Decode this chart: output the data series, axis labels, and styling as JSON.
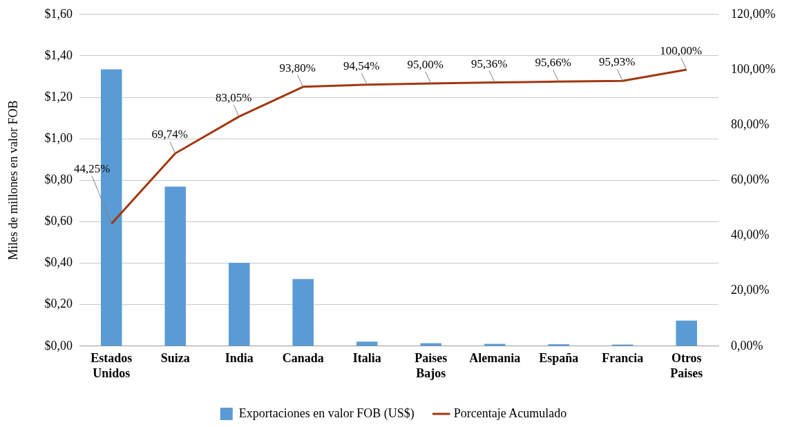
{
  "chart_data": {
    "type": "bar",
    "ylabel": "Miles de millones en valor FOB",
    "categories": [
      "Estados Unidos",
      "Suiza",
      "India",
      "Canada",
      "Italia",
      "Paises Bajos",
      "Alemania",
      "España",
      "Francia",
      "Otros Paises"
    ],
    "series": [
      {
        "name": "Exportaciones en valor FOB (US$)",
        "color": "#5b9bd5",
        "values": [
          1.335,
          0.769,
          0.402,
          0.324,
          0.022,
          0.014,
          0.011,
          0.009,
          0.008,
          0.123
        ]
      },
      {
        "name": "Porcentaje Acumulado",
        "type": "line",
        "axis": "y2",
        "color": "#a0360e",
        "marker": "none",
        "values": [
          44.25,
          69.74,
          83.05,
          93.8,
          94.54,
          95.0,
          95.36,
          95.66,
          95.93,
          100.0
        ],
        "value_labels": [
          "44,25%",
          "69,74%",
          "83,05%",
          "93,80%",
          "94,54%",
          "95,00%",
          "95,36%",
          "95,66%",
          "95,93%",
          "100,00%"
        ]
      }
    ],
    "ylim": [
      0,
      1.6
    ],
    "yticks": [
      {
        "value": 0,
        "label": "$0,00"
      },
      {
        "value": 0.2,
        "label": "$0,20"
      },
      {
        "value": 0.4,
        "label": "$0,40"
      },
      {
        "value": 0.6,
        "label": "$0,60"
      },
      {
        "value": 0.8,
        "label": "$0,80"
      },
      {
        "value": 1.0,
        "label": "$1,00"
      },
      {
        "value": 1.2,
        "label": "$1,20"
      },
      {
        "value": 1.4,
        "label": "$1,40"
      },
      {
        "value": 1.6,
        "label": "$1,60"
      }
    ],
    "y2lim": [
      0,
      120
    ],
    "y2ticks": [
      {
        "value": 0,
        "label": "0,00%"
      },
      {
        "value": 20,
        "label": "20,00%"
      },
      {
        "value": 40,
        "label": "40,00%"
      },
      {
        "value": 60,
        "label": "60,00%"
      },
      {
        "value": 80,
        "label": "80,00%"
      },
      {
        "value": 100,
        "label": "100,00%"
      },
      {
        "value": 120,
        "label": "120,00%"
      }
    ],
    "grid": "y",
    "legend": "bottom"
  }
}
